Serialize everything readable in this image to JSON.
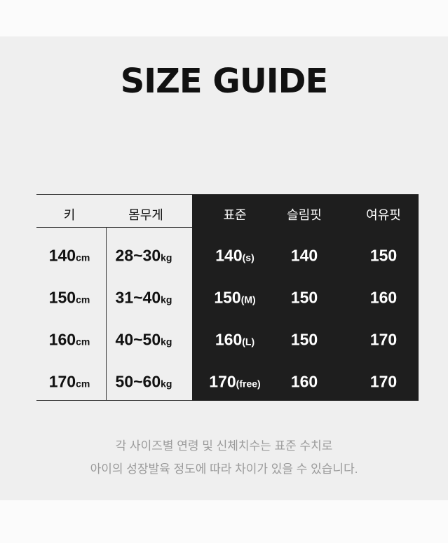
{
  "title": "SIZE GUIDE",
  "headers": [
    "키",
    "몸무게",
    "표준",
    "슬림핏",
    "여유핏"
  ],
  "rows": [
    {
      "height": "140",
      "height_unit": "cm",
      "weight": "28~30",
      "weight_unit": "kg",
      "standard": "140",
      "standard_size": "(s)",
      "slim": "140",
      "loose": "150"
    },
    {
      "height": "150",
      "height_unit": "cm",
      "weight": "31~40",
      "weight_unit": "kg",
      "standard": "150",
      "standard_size": "(M)",
      "slim": "150",
      "loose": "160"
    },
    {
      "height": "160",
      "height_unit": "cm",
      "weight": "40~50",
      "weight_unit": "kg",
      "standard": "160",
      "standard_size": "(L)",
      "slim": "150",
      "loose": "170"
    },
    {
      "height": "170",
      "height_unit": "cm",
      "weight": "50~60",
      "weight_unit": "kg",
      "standard": "170",
      "standard_size": "(free)",
      "slim": "160",
      "loose": "170"
    }
  ],
  "footer": [
    "각 사이즈별 연령 및 신체치수는 표준 수치로",
    "아이의 성장발육 정도에 따라 차이가 있을 수 있습니다."
  ],
  "colors": {
    "dark_panel": "#1e1e1e",
    "background": "#efefef",
    "footer_text": "#9b9b9b"
  }
}
